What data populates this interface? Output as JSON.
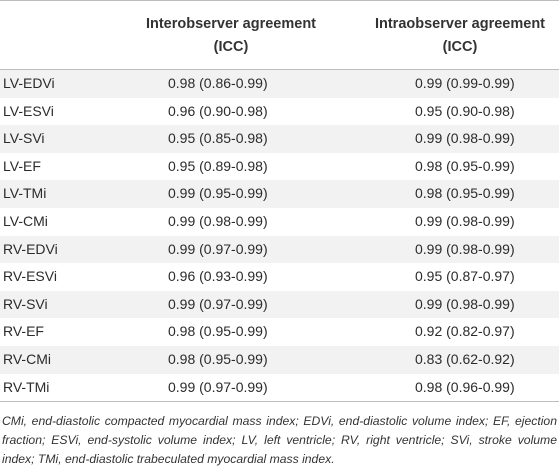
{
  "table": {
    "headers": {
      "row_label": "",
      "interobserver": "Interobserver agreement (ICC)",
      "intraobserver": "Intraobserver agreement (ICC)"
    },
    "rows": [
      {
        "label": "LV-EDVi",
        "inter": "0.98 (0.86-0.99)",
        "intra": "0.99 (0.99-0.99)"
      },
      {
        "label": "LV-ESVi",
        "inter": "0.96 (0.90-0.98)",
        "intra": "0.95 (0.90-0.98)"
      },
      {
        "label": "LV-SVi",
        "inter": "0.95 (0.85-0.98)",
        "intra": "0.99 (0.98-0.99)"
      },
      {
        "label": "LV-EF",
        "inter": "0.95 (0.89-0.98)",
        "intra": "0.98 (0.95-0.99)"
      },
      {
        "label": "LV-TMi",
        "inter": "0.99 (0.95-0.99)",
        "intra": "0.98 (0.95-0.99)"
      },
      {
        "label": "LV-CMi",
        "inter": "0.99 (0.98-0.99)",
        "intra": "0.99 (0.98-0.99)"
      },
      {
        "label": "RV-EDVi",
        "inter": "0.99 (0.97-0.99)",
        "intra": "0.99 (0.98-0.99)"
      },
      {
        "label": "RV-ESVi",
        "inter": "0.96 (0.93-0.99)",
        "intra": "0.95 (0.87-0.97)"
      },
      {
        "label": "RV-SVi",
        "inter": "0.99 (0.97-0.99)",
        "intra": "0.99 (0.98-0.99)"
      },
      {
        "label": "RV-EF",
        "inter": "0.98 (0.95-0.99)",
        "intra": "0.92 (0.82-0.97)"
      },
      {
        "label": "RV-CMi",
        "inter": "0.98 (0.95-0.99)",
        "intra": "0.83 (0.62-0.92)"
      },
      {
        "label": "RV-TMi",
        "inter": "0.99 (0.97-0.99)",
        "intra": "0.98 (0.96-0.99)"
      }
    ],
    "footnote": "CMi, end-diastolic compacted myocardial mass index; EDVi, end-diastolic volume index; EF, ejection fraction; ESVi, end-systolic volume index; LV, left ventricle; RV, right ventricle; SVi, stroke volume index; TMi, end-diastolic trabeculated myocardial mass index."
  },
  "colors": {
    "shaded_row": "#f2f2f2",
    "rule": "#bdbdbd",
    "text": "#2b2b2b"
  }
}
